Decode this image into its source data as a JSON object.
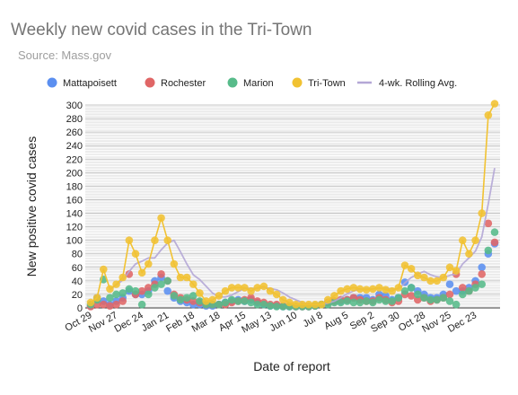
{
  "chart_data": {
    "type": "line",
    "title": "Weekly new covid cases in the Tri-Town",
    "subtitle": "Source: Mass.gov",
    "xlabel": "Date of report",
    "ylabel": "New positive covid cases",
    "ylim": [
      0,
      300
    ],
    "yticks": [
      0,
      20,
      40,
      60,
      80,
      100,
      120,
      140,
      160,
      180,
      200,
      220,
      240,
      260,
      280,
      300
    ],
    "grid": true,
    "legend_position": "top",
    "xtick_labels": [
      {
        "label": "Oct 29",
        "index": 0
      },
      {
        "label": "Nov 27",
        "index": 4
      },
      {
        "label": "Dec 24",
        "index": 8
      },
      {
        "label": "Jan 21",
        "index": 12
      },
      {
        "label": "Feb 18",
        "index": 16
      },
      {
        "label": "Mar 18",
        "index": 20
      },
      {
        "label": "Apr 15",
        "index": 24
      },
      {
        "label": "May 13",
        "index": 28
      },
      {
        "label": "Jun 10",
        "index": 32
      },
      {
        "label": "Jul 8",
        "index": 36
      },
      {
        "label": "Aug 5",
        "index": 40
      },
      {
        "label": "Sep 2",
        "index": 44
      },
      {
        "label": "Sep 30",
        "index": 48
      },
      {
        "label": "Oct 28",
        "index": 52
      },
      {
        "label": "Nov 25",
        "index": 56
      },
      {
        "label": "Dec 23",
        "index": 60
      }
    ],
    "series": [
      {
        "name": "Mattapoisett",
        "color": "#5b8ff0",
        "kind": "markers",
        "values": [
          3,
          15,
          10,
          5,
          10,
          15,
          25,
          20,
          20,
          25,
          40,
          45,
          25,
          15,
          10,
          8,
          5,
          5,
          3,
          3,
          5,
          8,
          10,
          12,
          10,
          12,
          8,
          5,
          3,
          3,
          2,
          2,
          2,
          2,
          2,
          3,
          5,
          8,
          10,
          10,
          12,
          15,
          15,
          15,
          12,
          20,
          18,
          12,
          15,
          38,
          30,
          25,
          20,
          15,
          15,
          20,
          35,
          25,
          25,
          30,
          40,
          60,
          80,
          95
        ]
      },
      {
        "name": "Rochester",
        "color": "#e06666",
        "kind": "markers",
        "values": [
          2,
          5,
          5,
          3,
          5,
          10,
          50,
          20,
          25,
          30,
          35,
          50,
          40,
          20,
          15,
          12,
          10,
          8,
          5,
          5,
          5,
          5,
          8,
          10,
          12,
          15,
          10,
          8,
          5,
          5,
          3,
          3,
          2,
          2,
          2,
          3,
          5,
          8,
          10,
          12,
          12,
          15,
          12,
          10,
          10,
          15,
          12,
          8,
          10,
          20,
          18,
          12,
          15,
          10,
          12,
          15,
          20,
          50,
          30,
          25,
          35,
          50,
          125,
          97
        ]
      },
      {
        "name": "Marion",
        "color": "#57bb8a",
        "kind": "markers",
        "values": [
          5,
          12,
          42,
          15,
          20,
          22,
          28,
          25,
          5,
          20,
          30,
          35,
          40,
          18,
          12,
          15,
          18,
          10,
          5,
          5,
          5,
          8,
          12,
          10,
          10,
          8,
          5,
          5,
          3,
          2,
          2,
          2,
          2,
          2,
          2,
          3,
          5,
          5,
          8,
          8,
          10,
          8,
          8,
          10,
          8,
          12,
          10,
          10,
          15,
          25,
          30,
          20,
          15,
          12,
          12,
          15,
          10,
          5,
          20,
          25,
          30,
          35,
          85,
          112
        ]
      },
      {
        "name": "Tri-Town",
        "color": "#f1c232",
        "kind": "line_markers",
        "values": [
          8,
          15,
          57,
          28,
          35,
          45,
          100,
          80,
          52,
          65,
          100,
          133,
          100,
          65,
          45,
          45,
          35,
          22,
          10,
          12,
          18,
          25,
          30,
          30,
          30,
          25,
          30,
          32,
          25,
          20,
          12,
          8,
          5,
          5,
          5,
          5,
          5,
          12,
          18,
          25,
          28,
          30,
          28,
          27,
          28,
          30,
          27,
          25,
          30,
          63,
          58,
          48,
          45,
          40,
          40,
          45,
          60,
          55,
          100,
          80,
          100,
          140,
          285,
          302
        ]
      },
      {
        "name": "4-wk. Rolling Avg.",
        "color": "#b4a7d6",
        "kind": "line",
        "values": [
          null,
          null,
          null,
          27,
          34,
          41,
          54,
          65,
          69,
          74,
          74,
          86,
          96,
          100,
          83,
          65,
          49,
          42,
          32,
          22,
          16,
          16,
          19,
          24,
          29,
          29,
          29,
          30,
          29,
          27,
          22,
          16,
          12,
          8,
          6,
          5,
          5,
          7,
          10,
          15,
          21,
          25,
          28,
          28,
          28,
          29,
          29,
          28,
          28,
          37,
          45,
          50,
          54,
          49,
          46,
          45,
          48,
          50,
          65,
          74,
          84,
          105,
          154,
          207
        ]
      }
    ]
  }
}
